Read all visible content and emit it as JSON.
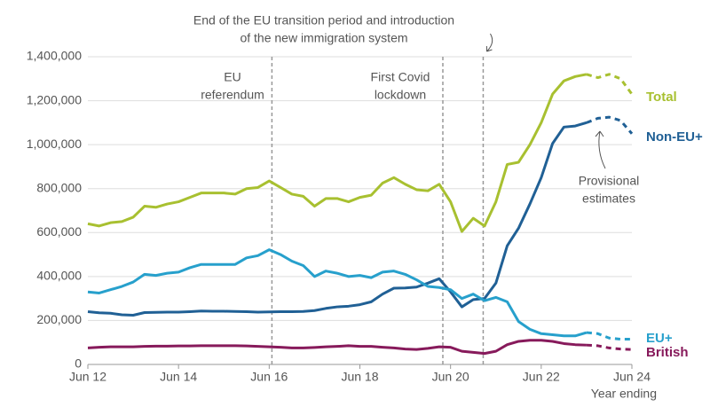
{
  "chart_data": {
    "type": "line",
    "x": [
      12,
      12.25,
      12.5,
      12.75,
      13,
      13.25,
      13.5,
      13.75,
      14,
      14.25,
      14.5,
      14.75,
      15,
      15.25,
      15.5,
      15.75,
      16,
      16.25,
      16.5,
      16.75,
      17,
      17.25,
      17.5,
      17.75,
      18,
      18.25,
      18.5,
      18.75,
      19,
      19.25,
      19.5,
      19.75,
      20,
      20.25,
      20.5,
      20.75,
      21,
      21.25,
      21.5,
      21.75,
      22,
      22.25,
      22.5,
      22.75,
      23,
      23.25,
      23.5,
      23.75,
      24
    ],
    "series": [
      {
        "name": "Total",
        "color": "#a8c030",
        "values": [
          640000,
          630000,
          645000,
          650000,
          670000,
          720000,
          715000,
          730000,
          740000,
          760000,
          780000,
          780000,
          780000,
          775000,
          800000,
          805000,
          835000,
          805000,
          775000,
          765000,
          720000,
          755000,
          755000,
          740000,
          760000,
          770000,
          825000,
          850000,
          820000,
          795000,
          790000,
          820000,
          740000,
          605000,
          665000,
          630000,
          740000,
          910000,
          920000,
          1000000,
          1100000,
          1230000,
          1290000,
          1310000,
          1320000,
          1305000,
          1320000,
          1300000,
          1230000
        ]
      },
      {
        "name": "Non-EU+",
        "color": "#206095",
        "values": [
          240000,
          235000,
          233000,
          226000,
          224000,
          236000,
          237000,
          238000,
          238000,
          240000,
          243000,
          242000,
          242000,
          241000,
          240000,
          238000,
          239000,
          240000,
          240000,
          241000,
          245000,
          255000,
          262000,
          265000,
          272000,
          285000,
          320000,
          347000,
          348000,
          352000,
          370000,
          390000,
          330000,
          262000,
          295000,
          300000,
          370000,
          540000,
          620000,
          730000,
          850000,
          1005000,
          1080000,
          1085000,
          1100000,
          1120000,
          1125000,
          1110000,
          1050000
        ]
      },
      {
        "name": "EU+",
        "color": "#27a0cc",
        "values": [
          330000,
          325000,
          340000,
          355000,
          375000,
          410000,
          405000,
          415000,
          420000,
          440000,
          455000,
          455000,
          455000,
          455000,
          485000,
          495000,
          522000,
          500000,
          470000,
          450000,
          400000,
          425000,
          415000,
          400000,
          405000,
          395000,
          420000,
          425000,
          410000,
          385000,
          355000,
          350000,
          340000,
          300000,
          320000,
          290000,
          305000,
          285000,
          195000,
          160000,
          140000,
          135000,
          130000,
          130000,
          145000,
          140000,
          120000,
          115000,
          115000
        ]
      },
      {
        "name": "British",
        "color": "#871a5b",
        "values": [
          75000,
          78000,
          80000,
          80000,
          80000,
          82000,
          83000,
          83000,
          84000,
          84000,
          85000,
          85000,
          85000,
          85000,
          84000,
          82000,
          80000,
          78000,
          75000,
          75000,
          77000,
          80000,
          82000,
          85000,
          82000,
          82000,
          78000,
          75000,
          70000,
          68000,
          73000,
          80000,
          78000,
          60000,
          55000,
          50000,
          60000,
          90000,
          105000,
          110000,
          110000,
          105000,
          95000,
          90000,
          88000,
          85000,
          75000,
          70000,
          68000
        ]
      }
    ],
    "provisional_from": 23,
    "xlim": [
      12,
      24
    ],
    "xticks": [
      {
        "value": 12,
        "label": "Jun 12"
      },
      {
        "value": 14,
        "label": "Jun 14"
      },
      {
        "value": 16,
        "label": "Jun 16"
      },
      {
        "value": 18,
        "label": "Jun 18"
      },
      {
        "value": 20,
        "label": "Jun 20"
      },
      {
        "value": 22,
        "label": "Jun 22"
      },
      {
        "value": 24,
        "label": "Jun 24"
      }
    ],
    "xlabel": "Year ending",
    "ylim": [
      0,
      1400000
    ],
    "yticks": [
      0,
      {
        "value": 200000,
        "label": "200,000"
      },
      {
        "value": 400000,
        "label": "400,000"
      },
      {
        "value": 600000,
        "label": "600,000"
      },
      {
        "value": 800000,
        "label": "800,000"
      },
      {
        "value": 1000000,
        "label": "1,000,000"
      },
      {
        "value": 1200000,
        "label": "1,200,000"
      },
      {
        "value": 1400000,
        "label": "1,400,000"
      }
    ],
    "grid": true,
    "events": [
      {
        "label": [
          "EU",
          "referendum"
        ],
        "x": 16.06
      },
      {
        "label": [
          "First Covid",
          "lockdown"
        ],
        "x": 19.83
      },
      {
        "label": [
          "End of the EU transition period and introduction",
          "of the new immigration system"
        ],
        "x": 20.72
      }
    ],
    "annotation": [
      "Provisional",
      "estimates"
    ]
  }
}
